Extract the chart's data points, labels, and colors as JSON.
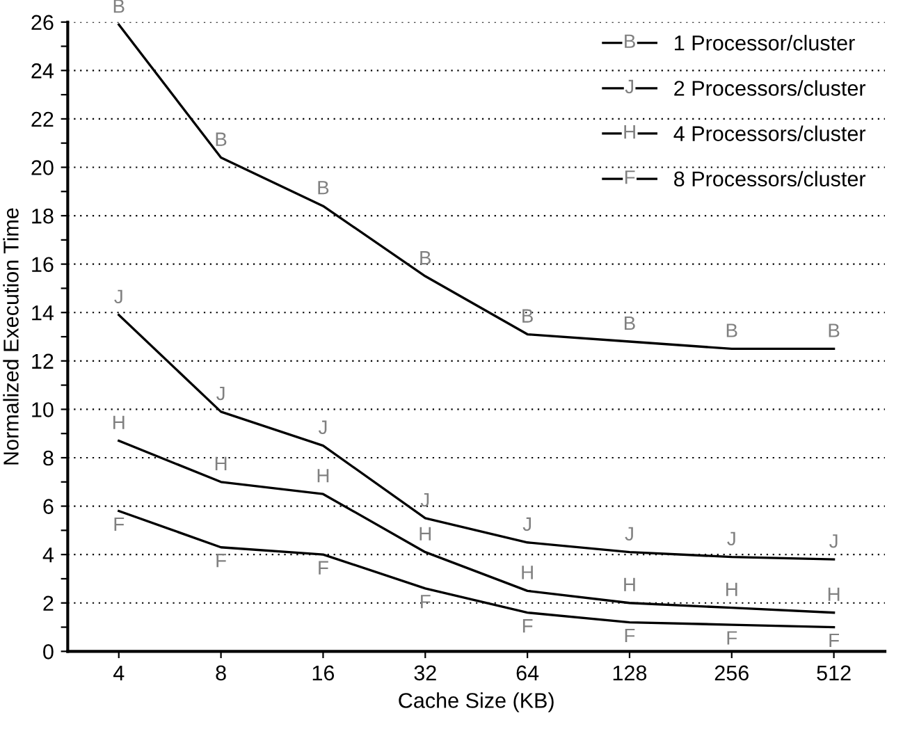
{
  "chart_data": {
    "type": "line",
    "xlabel": "Cache Size (KB)",
    "ylabel": "Normalized Execution Time",
    "categories": [
      "4",
      "8",
      "16",
      "32",
      "64",
      "128",
      "256",
      "512"
    ],
    "series": [
      {
        "name": "1 Processor/cluster",
        "color": "#000000",
        "values": [
          25.9,
          20.4,
          18.4,
          15.5,
          13.1,
          12.8,
          12.5,
          12.5
        ]
      },
      {
        "name": "2 Processors/cluster",
        "color": "#000000",
        "values": [
          13.9,
          9.9,
          8.5,
          5.5,
          4.5,
          4.1,
          3.9,
          3.8
        ]
      },
      {
        "name": "4 Processors/cluster",
        "color": "#000000",
        "values": [
          8.7,
          7.0,
          6.5,
          4.1,
          2.5,
          2.0,
          1.8,
          1.6
        ]
      },
      {
        "name": "8 Processors/cluster",
        "color": "#000000",
        "values": [
          5.8,
          4.3,
          4.0,
          2.6,
          1.6,
          1.2,
          1.1,
          1.0
        ]
      }
    ],
    "annotations": [
      {
        "text": "B",
        "x": "4",
        "y": 25.9
      },
      {
        "text": "B",
        "x": "8",
        "y": 20.4
      },
      {
        "text": "B",
        "x": "16",
        "y": 18.4
      },
      {
        "text": "B",
        "x": "32",
        "y": 15.5
      },
      {
        "text": "B",
        "x": "64",
        "y": 13.1
      },
      {
        "text": "B",
        "x": "128",
        "y": 12.8
      },
      {
        "text": "B",
        "x": "256",
        "y": 12.5
      },
      {
        "text": "B",
        "x": "512",
        "y": 12.5
      },
      {
        "text": "J",
        "x": "4",
        "y": 13.9
      },
      {
        "text": "J",
        "x": "8",
        "y": 9.9
      },
      {
        "text": "J",
        "x": "16",
        "y": 8.5
      },
      {
        "text": "J",
        "x": "32",
        "y": 5.5
      },
      {
        "text": "J",
        "x": "64",
        "y": 4.5
      },
      {
        "text": "J",
        "x": "128",
        "y": 4.1
      },
      {
        "text": "J",
        "x": "256",
        "y": 3.9
      },
      {
        "text": "J",
        "x": "512",
        "y": 3.8
      },
      {
        "text": "H",
        "x": "4",
        "y": 8.7
      },
      {
        "text": "H",
        "x": "8",
        "y": 7.0
      },
      {
        "text": "H",
        "x": "16",
        "y": 6.5
      },
      {
        "text": "H",
        "x": "32",
        "y": 4.1
      },
      {
        "text": "H",
        "x": "64",
        "y": 2.5
      },
      {
        "text": "H",
        "x": "128",
        "y": 2.0
      },
      {
        "text": "H",
        "x": "256",
        "y": 1.8
      },
      {
        "text": "H",
        "x": "512",
        "y": 1.6
      },
      {
        "text": "F",
        "x": "4",
        "y": 5.8
      },
      {
        "text": "F",
        "x": "8",
        "y": 4.3
      },
      {
        "text": "F",
        "x": "16",
        "y": 4.0
      },
      {
        "text": "F",
        "x": "32",
        "y": 2.6
      },
      {
        "text": "F",
        "x": "64",
        "y": 1.6
      },
      {
        "text": "F",
        "x": "128",
        "y": 1.2
      },
      {
        "text": "F",
        "x": "256",
        "y": 1.1
      },
      {
        "text": "F",
        "x": "512",
        "y": 1.0
      },
      "B",
      "J",
      "H",
      "F"
    ],
    "ylim": [
      0,
      26
    ],
    "yticks": [
      0,
      {
        "value": 1,
        "label": null
      },
      2,
      {
        "value": 3,
        "label": null
      },
      4,
      {
        "value": 5,
        "label": null
      },
      6,
      {
        "value": 7,
        "label": null
      },
      8,
      {
        "value": 9,
        "label": null
      },
      10,
      {
        "value": 11,
        "label": null
      },
      12,
      {
        "value": 13,
        "label": null
      },
      14,
      {
        "value": 15,
        "label": null
      },
      16,
      {
        "value": 17,
        "label": null
      },
      18,
      {
        "value": 19,
        "label": null
      },
      20,
      {
        "value": 21,
        "label": null
      },
      22,
      {
        "value": 23,
        "label": null
      },
      24,
      {
        "value": 25,
        "label": null
      },
      26
    ],
    "grid": "y",
    "legend": "top right",
    "line_style": "solid"
  }
}
